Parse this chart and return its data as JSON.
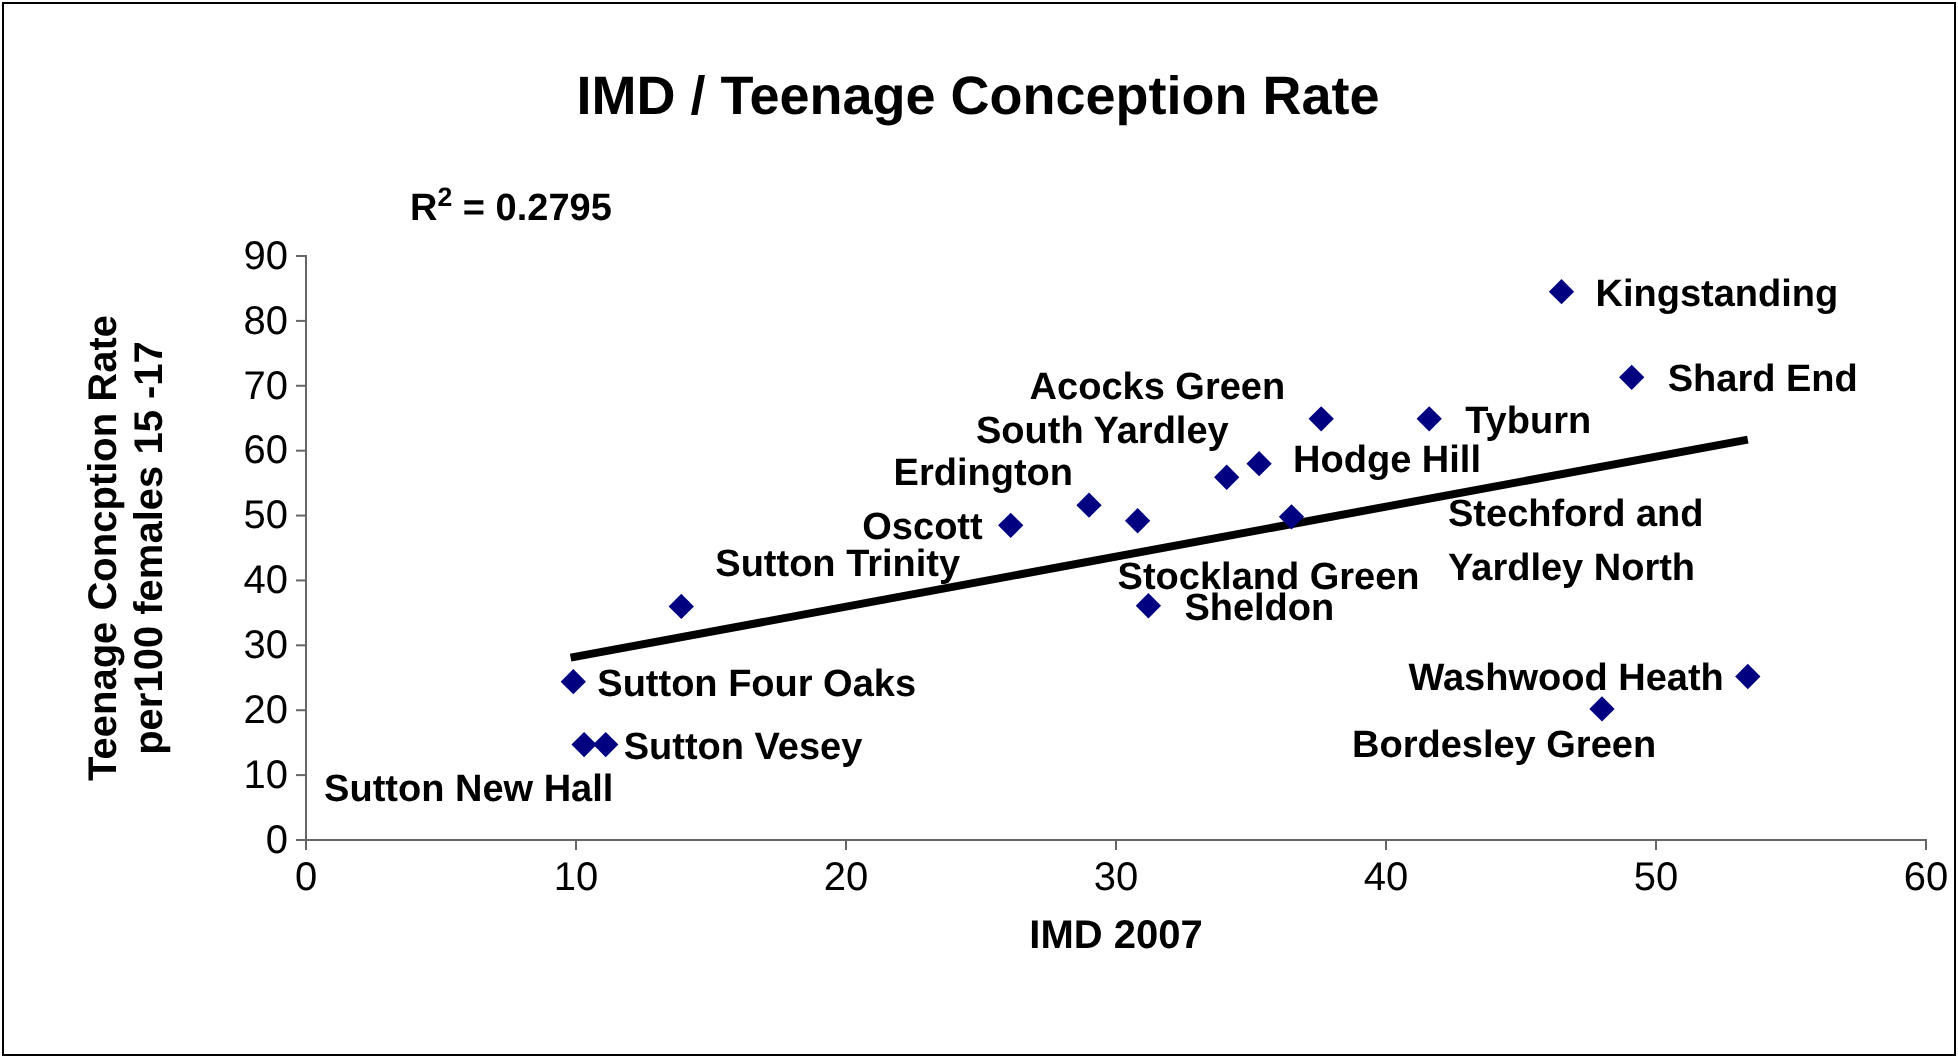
{
  "chart_data": {
    "type": "scatter",
    "title": "IMD / Teenage Conception Rate",
    "xlabel": "IMD 2007",
    "ylabel": "Teenage Concption Rate per100 females 15 -17",
    "marker": "diamond",
    "grid": false,
    "xlim": [
      0,
      60
    ],
    "xticks": [
      0,
      10,
      20,
      30,
      40,
      50,
      60
    ],
    "ylim": [
      0,
      90
    ],
    "yticks": [
      0,
      10,
      20,
      30,
      40,
      50,
      60,
      70,
      80,
      90
    ],
    "series": [
      {
        "color": "#000080",
        "x": [
          9.9,
          10.3,
          11.1,
          13.9,
          26.1,
          29.0,
          30.8,
          31.2,
          34.1,
          35.3,
          36.5,
          37.6,
          41.6,
          46.5,
          48.0,
          49.1,
          53.4
        ],
        "values": [
          24.4,
          14.7,
          14.7,
          36.0,
          48.5,
          51.6,
          49.2,
          36.1,
          55.9,
          58.0,
          49.8,
          64.9,
          64.9,
          84.5,
          20.2,
          71.3,
          25.2
        ]
      },
      {
        "type": "line",
        "color": "#000000",
        "marker": "none",
        "x": [
          9.8,
          53.4
        ],
        "values": [
          28.1,
          61.7
        ]
      }
    ],
    "annotations": [
      "R$^{2}$ = 0.2795",
      {
        "text": "Sutton Four Oaks",
        "x": 9.9,
        "y": 24.4
      },
      {
        "text": "Sutton New Hall",
        "x": 10.3,
        "y": 14.7
      },
      {
        "text": "Sutton Vesey",
        "x": 11.1,
        "y": 14.7
      },
      {
        "text": "Sutton Trinity",
        "x": 13.9,
        "y": 36.0
      },
      {
        "text": "Oscott",
        "x": 26.1,
        "y": 48.5
      },
      {
        "text": "Erdington",
        "x": 29.0,
        "y": 51.6
      },
      {
        "text": "Stockland Green",
        "x": 30.8,
        "y": 49.2
      },
      {
        "text": "Sheldon",
        "x": 31.2,
        "y": 36.1
      },
      {
        "text": "South Yardley",
        "x": 34.1,
        "y": 55.9
      },
      {
        "text": "Hodge Hill",
        "x": 35.3,
        "y": 58.0
      },
      "Stechford and Yardley North",
      {
        "text": "Acocks Green",
        "x": 37.6,
        "y": 64.9
      },
      {
        "text": "Tyburn",
        "x": 41.6,
        "y": 64.9
      },
      {
        "text": "Kingstanding",
        "x": 46.5,
        "y": 84.5
      },
      {
        "text": "Bordesley Green",
        "x": 48.0,
        "y": 20.2
      },
      {
        "text": "Shard End",
        "x": 49.1,
        "y": 71.3
      },
      {
        "text": "Washwood Heath",
        "x": 53.4,
        "y": 25.2
      }
    ]
  }
}
